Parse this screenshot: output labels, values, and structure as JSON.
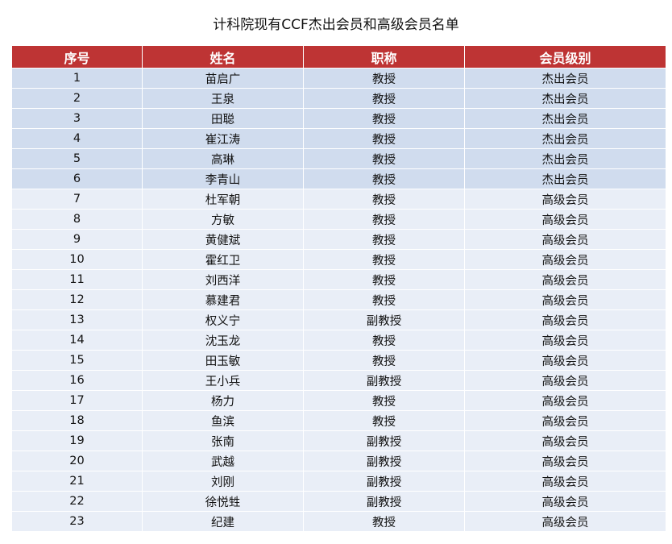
{
  "title": "计科院现有CCF杰出会员和高级会员名单",
  "colors": {
    "header": "#BE3434",
    "distinguished_row": "#D0DCEE",
    "senior_row": "#E9EEF7"
  },
  "headers": [
    "序号",
    "姓名",
    "职称",
    "会员级别"
  ],
  "rows": [
    [
      "1",
      "苗启广",
      "教授",
      "杰出会员"
    ],
    [
      "2",
      "王泉",
      "教授",
      "杰出会员"
    ],
    [
      "3",
      "田聪",
      "教授",
      "杰出会员"
    ],
    [
      "4",
      "崔江涛",
      "教授",
      "杰出会员"
    ],
    [
      "5",
      "高琳",
      "教授",
      "杰出会员"
    ],
    [
      "6",
      "李青山",
      "教授",
      "杰出会员"
    ],
    [
      "7",
      "杜军朝",
      "教授",
      "高级会员"
    ],
    [
      "8",
      "方敏",
      "教授",
      "高级会员"
    ],
    [
      "9",
      "黄健斌",
      "教授",
      "高级会员"
    ],
    [
      "10",
      "霍红卫",
      "教授",
      "高级会员"
    ],
    [
      "11",
      "刘西洋",
      "教授",
      "高级会员"
    ],
    [
      "12",
      "慕建君",
      "教授",
      "高级会员"
    ],
    [
      "13",
      "权义宁",
      "副教授",
      "高级会员"
    ],
    [
      "14",
      "沈玉龙",
      "教授",
      "高级会员"
    ],
    [
      "15",
      "田玉敏",
      "教授",
      "高级会员"
    ],
    [
      "16",
      "王小兵",
      "副教授",
      "高级会员"
    ],
    [
      "17",
      "杨力",
      "教授",
      "高级会员"
    ],
    [
      "18",
      "鱼滨",
      "教授",
      "高级会员"
    ],
    [
      "19",
      "张南",
      "副教授",
      "高级会员"
    ],
    [
      "20",
      "武越",
      "副教授",
      "高级会员"
    ],
    [
      "21",
      "刘刚",
      "副教授",
      "高级会员"
    ],
    [
      "22",
      "徐悦甡",
      "副教授",
      "高级会员"
    ],
    [
      "23",
      "纪建",
      "教授",
      "高级会员"
    ]
  ]
}
